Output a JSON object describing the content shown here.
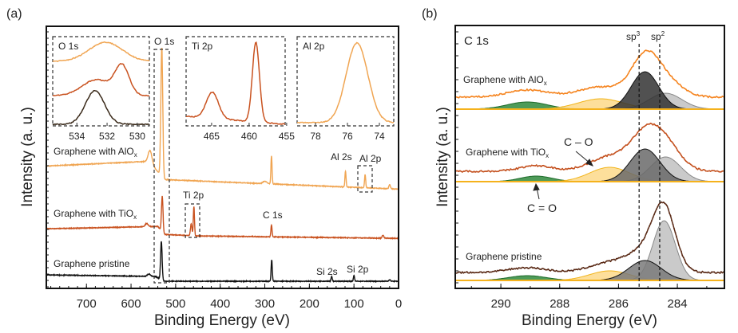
{
  "chart_data": [
    {
      "panel_label": "(a)",
      "type": "line",
      "xlabel": "Binding Energy (eV)",
      "ylabel": "Intensity (a. u.)",
      "xlim": [
        790,
        0
      ],
      "x_reversed": true,
      "ylim": [
        0,
        3.3
      ],
      "xticks": [
        "700",
        "600",
        "500",
        "400",
        "300",
        "200",
        "100",
        "0"
      ],
      "xtick_values": [
        700,
        600,
        500,
        400,
        300,
        200,
        100,
        0
      ],
      "series": [
        {
          "name": "Graphene with AlOx",
          "label_main": "Graphene with AlO",
          "label_sub": "x",
          "color": "#f0a552",
          "baseline": [
            [
              790,
              1.54
            ],
            [
              560,
              1.6
            ],
            [
              525,
              1.37
            ],
            [
              0,
              1.25
            ]
          ],
          "peaks": [
            [
              531,
              1.62,
              5
            ],
            [
              557,
              0.15,
              10
            ],
            [
              285,
              0.35,
              3
            ],
            [
              119,
              0.2,
              3
            ],
            [
              75,
              0.17,
              3
            ],
            [
              20,
              0.05,
              4
            ],
            [
              300,
              0.03,
              10
            ]
          ]
        },
        {
          "name": "Graphene with TiOx",
          "label_main": "Graphene with TiO",
          "label_sub": "x",
          "color": "#c9521f",
          "baseline": [
            [
              790,
              0.75
            ],
            [
              540,
              0.78
            ],
            [
              525,
              0.68
            ],
            [
              450,
              0.66
            ],
            [
              0,
              0.63
            ]
          ],
          "peaks": [
            [
              530,
              0.45,
              4
            ],
            [
              459,
              0.37,
              3
            ],
            [
              465,
              0.15,
              4
            ],
            [
              285,
              0.15,
              3
            ],
            [
              565,
              0.04,
              8
            ],
            [
              35,
              0.04,
              4
            ]
          ]
        },
        {
          "name": "Graphene pristine",
          "label_main": "Graphene pristine",
          "label_sub": "",
          "color": "#111111",
          "baseline": [
            [
              790,
              0.17
            ],
            [
              545,
              0.15
            ],
            [
              525,
              0.09
            ],
            [
              0,
              0.09
            ]
          ],
          "peaks": [
            [
              532,
              0.48,
              4
            ],
            [
              284.5,
              0.27,
              3
            ],
            [
              150,
              0.06,
              3
            ],
            [
              100,
              0.07,
              3
            ],
            [
              560,
              0.03,
              8
            ],
            [
              20,
              0.02,
              4
            ]
          ]
        }
      ],
      "peak_annotations": [
        "O 1s",
        "Ti 2p",
        "Al 2s",
        "Al 2p",
        "C 1s",
        "Si 2s",
        "Si 2p"
      ],
      "insets": [
        {
          "title": "O 1s",
          "xlim": [
            535.6,
            529.2
          ],
          "xticks": [
            "534",
            "532",
            "530"
          ],
          "xtick_values": [
            534,
            532,
            530
          ],
          "curves": [
            {
              "sample": "Graphene with AlOx",
              "color": "#f0a552",
              "base": 0.81,
              "peaks": [
                [
                  532.1,
                  0.24,
                  2.6
                ]
              ]
            },
            {
              "sample": "Graphene with TiOx",
              "color": "#c9521f",
              "base": 0.38,
              "peaks": [
                [
                  531,
                  0.36,
                  1.1
                ],
                [
                  532.7,
                  0.2,
                  2.2
                ]
              ]
            },
            {
              "sample": "Graphene pristine",
              "color": "#3a2a1a",
              "base": 0.02,
              "peaks": [
                [
                  532.8,
                  0.42,
                  1.5
                ]
              ]
            }
          ]
        },
        {
          "title": "Ti 2p",
          "xlim": [
            468.4,
            455.2
          ],
          "xticks": [
            "465",
            "460",
            "455"
          ],
          "xtick_values": [
            465,
            460,
            455
          ],
          "curves": [
            {
              "sample": "Graphene with TiOx",
              "color": "#c9521f",
              "base": 0.08,
              "peaks": [
                [
                  459.1,
                  1.0,
                  1.1
                ],
                [
                  464.9,
                  0.33,
                  1.9
                ]
              ]
            }
          ]
        },
        {
          "title": "Al 2p",
          "xlim": [
            79.15,
            73.1
          ],
          "xticks": [
            "78",
            "76",
            "74"
          ],
          "xtick_values": [
            78,
            76,
            74
          ],
          "curves": [
            {
              "sample": "Graphene with AlOx",
              "color": "#f0a552",
              "base": 0.04,
              "peaks": [
                [
                  75.4,
                  1.0,
                  1.6
                ]
              ]
            }
          ]
        }
      ]
    },
    {
      "panel_label": "(b)",
      "type": "line",
      "title": "C 1s",
      "xlabel": "Binding Energy (eV)",
      "ylabel": "Intensity (a. u.)",
      "xlim": [
        291.55,
        282.4
      ],
      "x_reversed": true,
      "ylim": [
        0,
        3.3
      ],
      "xticks": [
        "290",
        "288",
        "286",
        "284"
      ],
      "xtick_values": [
        290,
        288,
        286,
        284
      ],
      "reference_lines": [
        {
          "label": "sp",
          "sup": "3",
          "x": 285.3
        },
        {
          "label": "sp",
          "sup": "2",
          "x": 284.6
        }
      ],
      "component_colors": {
        "sp3": "#555555",
        "sp2": "#bdbdbd",
        "C-O": "#fdd98a",
        "C=O": "#2f8a3c"
      },
      "annotations": {
        "c_o": "C – O",
        "c_eq_o": "C = O"
      },
      "series": [
        {
          "name": "Graphene with AlOx",
          "label_main": "Graphene with AlO",
          "label_sub": "x",
          "color": "#f5841f",
          "base": 2.25,
          "data_offset": 0.15,
          "sp3_color": "#333333",
          "components": {
            "sp3": [
              285.1,
              0.47,
              1.1
            ],
            "sp2": [
              284.4,
              0.2,
              1.3
            ],
            "C-O": [
              286.6,
              0.13,
              1.8
            ],
            "C=O": [
              289.1,
              0.09,
              1.6
            ]
          }
        },
        {
          "name": "Graphene with TiOx",
          "label_main": "Graphene with TiO",
          "label_sub": "x",
          "color": "#c4511f",
          "base": 1.34,
          "data_offset": 0.13,
          "sp3_color": "#6a6a6a",
          "components": {
            "sp3": [
              285.1,
              0.41,
              1.2
            ],
            "sp2": [
              284.4,
              0.31,
              1.2
            ],
            "C-O": [
              286.3,
              0.18,
              1.6
            ],
            "C=O": [
              288.8,
              0.07,
              1.3
            ]
          }
        },
        {
          "name": "Graphene pristine",
          "label_main": "Graphene pristine",
          "label_sub": "",
          "color": "#5a2a16",
          "base": 0.1,
          "data_offset": 0.1,
          "sp3_color": "#7a7a7a",
          "components": {
            "sp3": [
              285.1,
              0.25,
              1.3
            ],
            "sp2": [
              284.45,
              0.75,
              0.9
            ],
            "C-O": [
              286.3,
              0.12,
              1.6
            ],
            "C=O": [
              289.1,
              0.06,
              1.5
            ]
          }
        }
      ]
    }
  ]
}
